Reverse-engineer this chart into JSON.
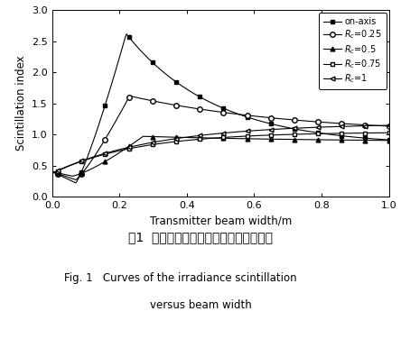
{
  "title": "",
  "xlabel": "Transmitter beam width/m",
  "ylabel": "Scintillation index",
  "xlim": [
    0,
    1.0
  ],
  "ylim": [
    0,
    3.0
  ],
  "xticks": [
    0,
    0.2,
    0.4,
    0.6,
    0.8,
    1.0
  ],
  "yticks": [
    0,
    0.5,
    1.0,
    1.5,
    2.0,
    2.5,
    3.0
  ],
  "legend_labels": [
    "on-axis",
    "$R_c$=0.25",
    "$R_c$=0.5",
    "$R_c$=0.75",
    "$R_c$=1"
  ],
  "fig_caption_cn": "图1  光强闪烁随信号光束宽度的变化曲线",
  "fig_caption_en": "Fig. 1   Curves of the irradiance scintillation\n              versus beam width",
  "background_color": "#ffffff"
}
